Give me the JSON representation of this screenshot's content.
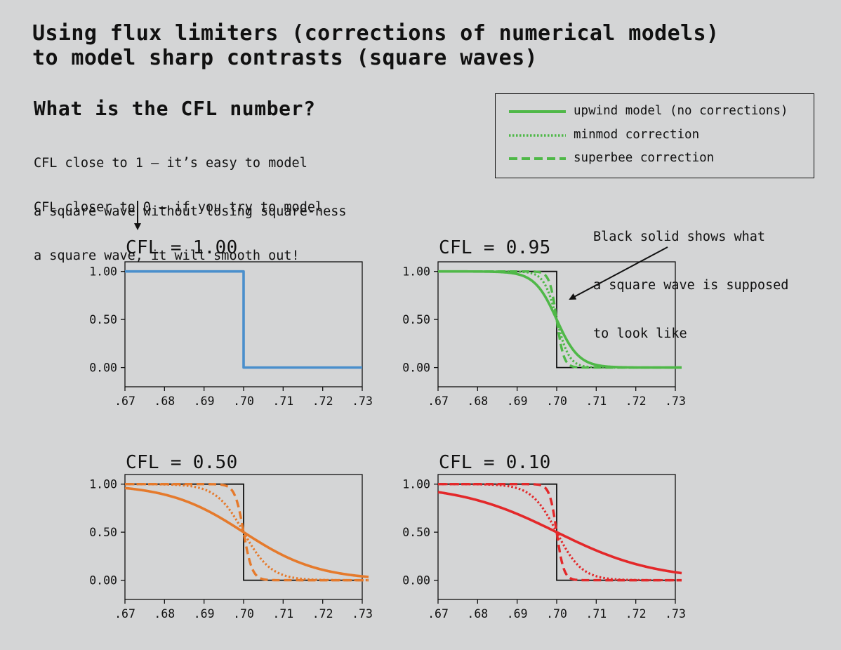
{
  "title_lines": [
    "Using flux limiters (corrections of numerical models)",
    "to model sharp contrasts (square waves)"
  ],
  "cfl_heading": "What is the CFL number?",
  "note_close_to_1": [
    "CFL close to 1 – it’s easy to model",
    "a square wave without losing square-ness"
  ],
  "note_close_to_0": [
    "CFL closer to 0 – if you try to model",
    "a square wave, it will smooth out!"
  ],
  "annotation": [
    "Black solid shows what",
    "a square wave is supposed",
    "to look like"
  ],
  "legend": [
    {
      "label": "upwind model (no corrections)",
      "style": "solid"
    },
    {
      "label": "minmod correction",
      "style": "dotted"
    },
    {
      "label": "superbee correction",
      "style": "dashed"
    }
  ],
  "colors": {
    "background": "#d4d5d6",
    "cfl_1_00": "#4a8fcc",
    "cfl_0_95": "#4fb848",
    "cfl_0_50": "#e57a2c",
    "cfl_0_10": "#e3282a",
    "exact": "#111111"
  },
  "chart_data": [
    {
      "type": "line",
      "title": "CFL = 1.00",
      "color": "#4a8fcc",
      "xlim": [
        0.67,
        0.73
      ],
      "ylim": [
        -0.2,
        1.1
      ],
      "xticks": [
        0.67,
        0.68,
        0.69,
        0.7,
        0.71,
        0.72,
        0.73
      ],
      "xtick_labels": [
        ".67",
        ".68",
        ".69",
        ".70",
        ".71",
        ".72",
        ".73"
      ],
      "yticks": [
        0.0,
        0.5,
        1.0
      ],
      "ytick_labels": [
        "0.00",
        "0.50",
        "1.00"
      ],
      "step_at": 0.7,
      "series": [
        {
          "style": "solid",
          "width": 0.0
        }
      ]
    },
    {
      "type": "line",
      "title": "CFL = 0.95",
      "color": "#4fb848",
      "xlim": [
        0.67,
        0.73
      ],
      "ylim": [
        -0.2,
        1.1
      ],
      "xticks": [
        0.67,
        0.68,
        0.69,
        0.7,
        0.71,
        0.72,
        0.73
      ],
      "xtick_labels": [
        ".67",
        ".68",
        ".69",
        ".70",
        ".71",
        ".72",
        ".73"
      ],
      "yticks": [
        0.0,
        0.5,
        1.0
      ],
      "ytick_labels": [
        "0.00",
        "0.50",
        "1.00"
      ],
      "step_at": 0.7,
      "series": [
        {
          "style": "solid",
          "width": 0.0028
        },
        {
          "style": "dotted",
          "width": 0.0016
        },
        {
          "style": "dashed",
          "width": 0.0009
        }
      ]
    },
    {
      "type": "line",
      "title": "CFL = 0.50",
      "color": "#e57a2c",
      "xlim": [
        0.67,
        0.73
      ],
      "ylim": [
        -0.2,
        1.1
      ],
      "xticks": [
        0.67,
        0.68,
        0.69,
        0.7,
        0.71,
        0.72,
        0.73
      ],
      "xtick_labels": [
        ".67",
        ".68",
        ".69",
        ".70",
        ".71",
        ".72",
        ".73"
      ],
      "yticks": [
        0.0,
        0.5,
        1.0
      ],
      "ytick_labels": [
        "0.00",
        "0.50",
        "1.00"
      ],
      "step_at": 0.7,
      "series": [
        {
          "style": "solid",
          "width": 0.0095
        },
        {
          "style": "dotted",
          "width": 0.0035
        },
        {
          "style": "dashed",
          "width": 0.0011
        }
      ]
    },
    {
      "type": "line",
      "title": "CFL = 0.10",
      "color": "#e3282a",
      "xlim": [
        0.67,
        0.73
      ],
      "ylim": [
        -0.2,
        1.1
      ],
      "xticks": [
        0.67,
        0.68,
        0.69,
        0.7,
        0.71,
        0.72,
        0.73
      ],
      "xtick_labels": [
        ".67",
        ".68",
        ".69",
        ".70",
        ".71",
        ".72",
        ".73"
      ],
      "yticks": [
        0.0,
        0.5,
        1.0
      ],
      "ytick_labels": [
        "0.00",
        "0.50",
        "1.00"
      ],
      "step_at": 0.7,
      "series": [
        {
          "style": "solid",
          "width": 0.0125
        },
        {
          "style": "dotted",
          "width": 0.0032
        },
        {
          "style": "dashed",
          "width": 0.0009
        }
      ]
    }
  ]
}
